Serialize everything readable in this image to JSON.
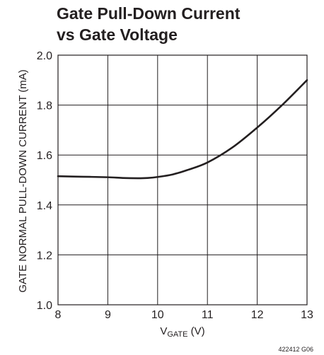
{
  "chart_data": {
    "type": "line",
    "title_line1": "Gate Pull-Down Current",
    "title_line2": "vs Gate Voltage",
    "xlabel_main": "V",
    "xlabel_sub": "GATE",
    "xlabel_unit": " (V)",
    "ylabel": "GATE NORMAL PULL-DOWN CURRENT (mA)",
    "figure_id": "422412 G06",
    "xlim": [
      8,
      13
    ],
    "ylim": [
      1.0,
      2.0
    ],
    "x_ticks": [
      "8",
      "9",
      "10",
      "11",
      "12",
      "13"
    ],
    "y_ticks": [
      "1.0",
      "1.2",
      "1.4",
      "1.6",
      "1.8",
      "2.0"
    ],
    "grid": true,
    "line_color": "#231f20",
    "series": [
      {
        "x": [
          8.0,
          8.5,
          9.0,
          9.3,
          9.6,
          9.8,
          10.0,
          10.3,
          10.6,
          11.0,
          11.5,
          12.0,
          12.5,
          13.0
        ],
        "y": [
          1.515,
          1.513,
          1.511,
          1.508,
          1.507,
          1.508,
          1.512,
          1.522,
          1.54,
          1.57,
          1.63,
          1.71,
          1.8,
          1.9
        ]
      }
    ]
  }
}
